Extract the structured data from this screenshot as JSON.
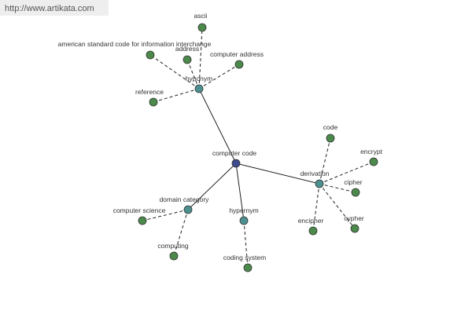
{
  "url": "http://www.artikata.com",
  "nodes": [
    {
      "label": "computer code"
    },
    {
      "label": "hyponym"
    },
    {
      "label": "ascii"
    },
    {
      "label": "american standard code for information interchange"
    },
    {
      "label": "address"
    },
    {
      "label": "computer address"
    },
    {
      "label": "reference"
    },
    {
      "label": "derivation"
    },
    {
      "label": "code"
    },
    {
      "label": "encrypt"
    },
    {
      "label": "cipher"
    },
    {
      "label": "cypher"
    },
    {
      "label": "encipher"
    },
    {
      "label": "domain category"
    },
    {
      "label": "computer science"
    },
    {
      "label": "computing"
    },
    {
      "label": "hypernym"
    },
    {
      "label": "coding system"
    }
  ]
}
